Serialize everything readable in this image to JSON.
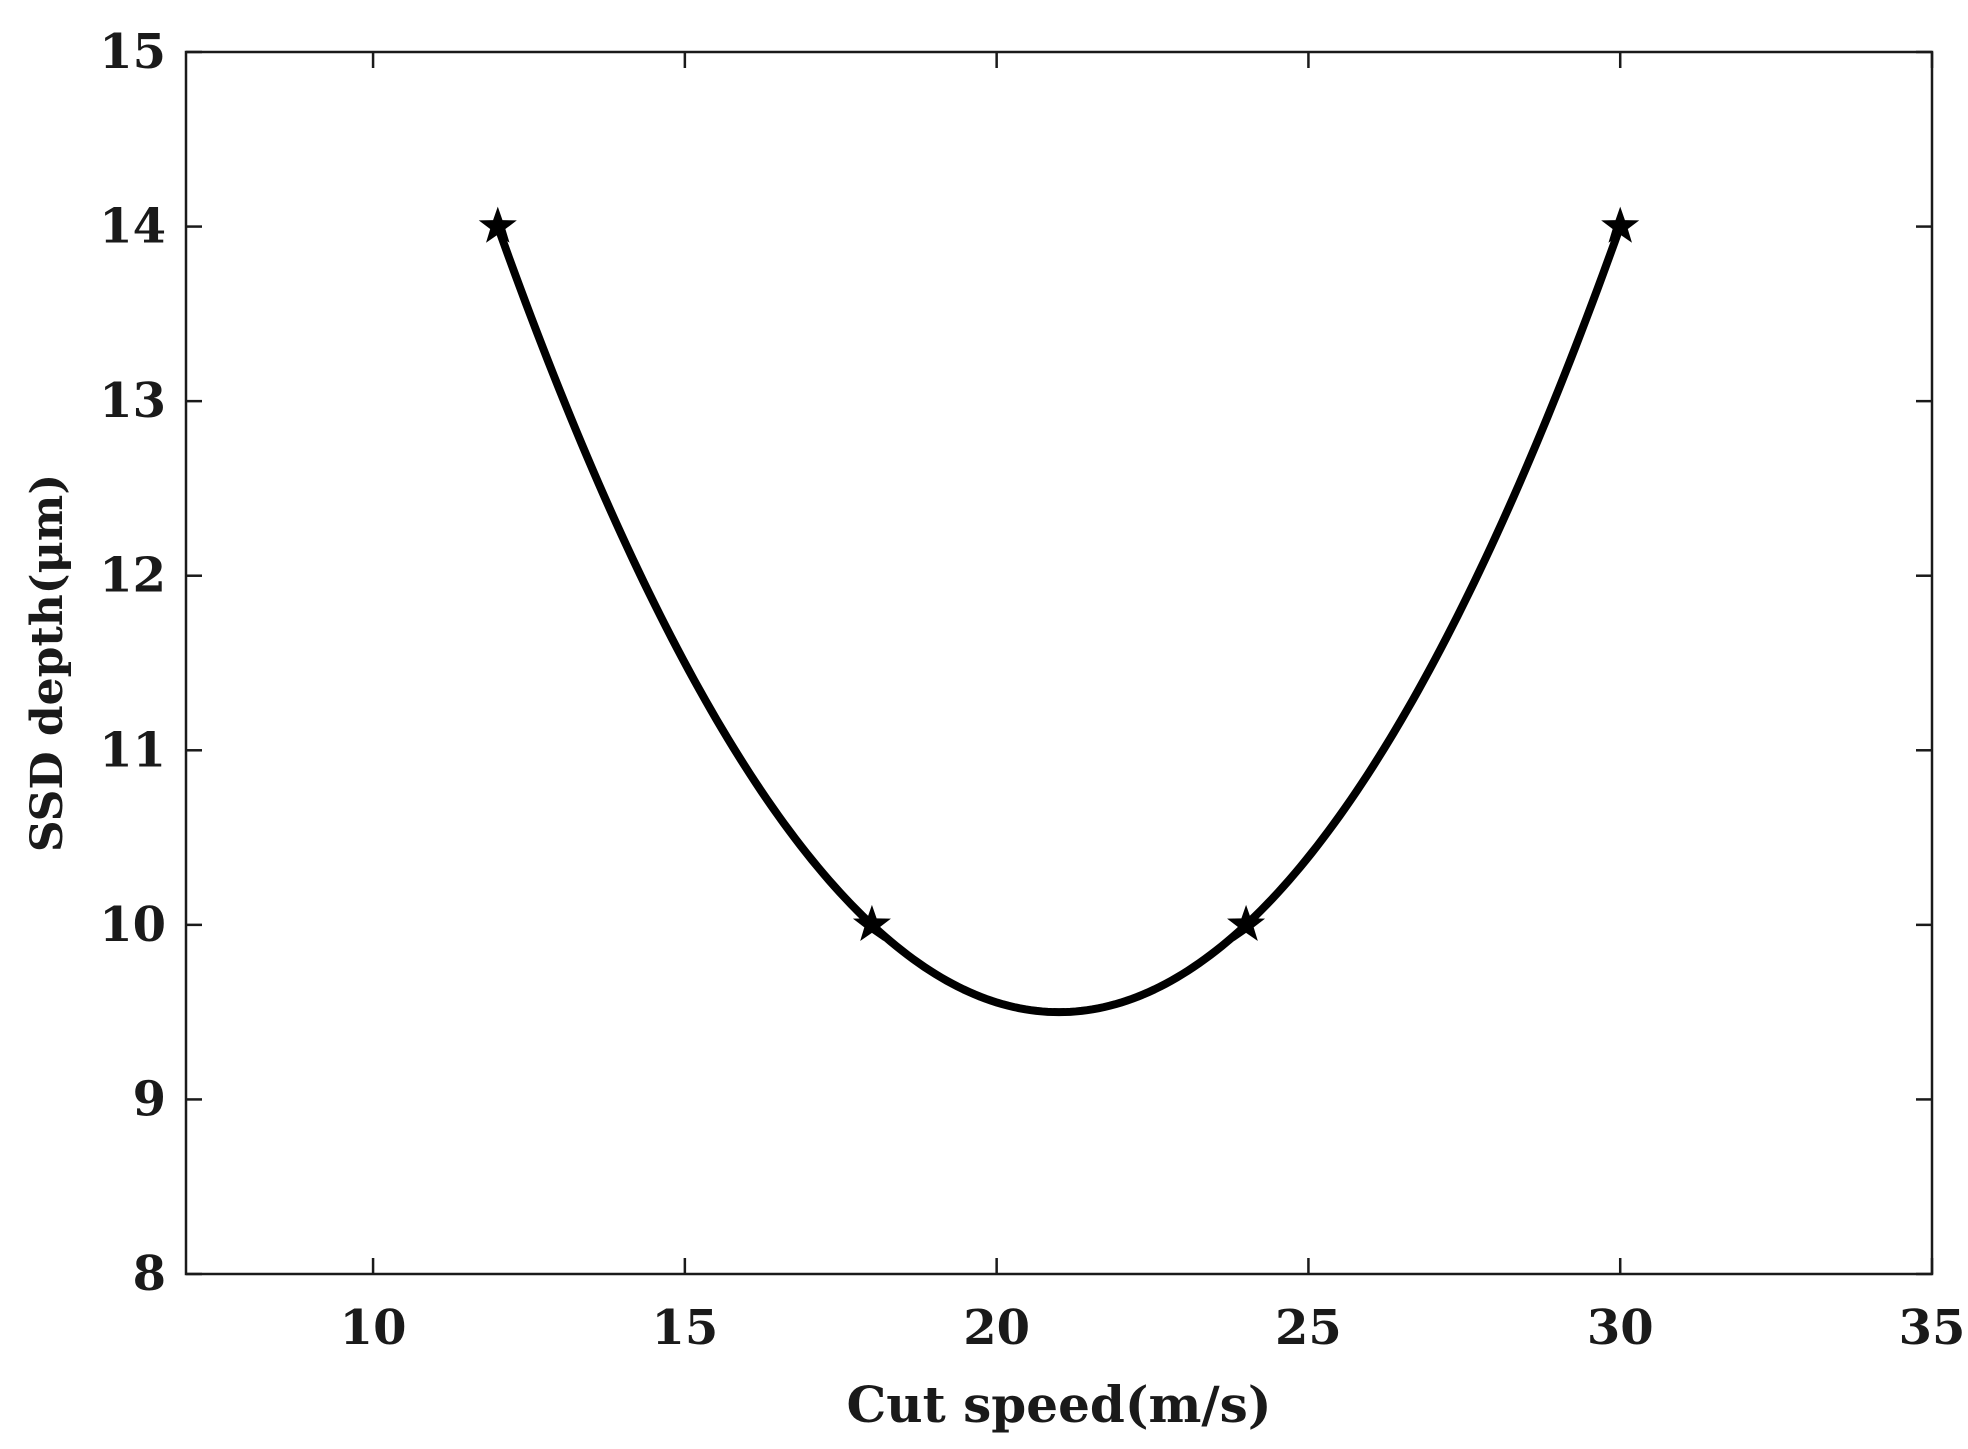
{
  "chart_data": {
    "type": "line",
    "title": "",
    "xlabel": "Cut speed(m/s)",
    "ylabel": "SSD depth(μm)",
    "xlim": [
      7,
      35
    ],
    "ylim": [
      8,
      15
    ],
    "x_ticks": [
      10,
      15,
      20,
      25,
      30,
      35
    ],
    "y_ticks": [
      8,
      9,
      10,
      11,
      12,
      13,
      14,
      15
    ],
    "grid": false,
    "legend": "none",
    "series": [
      {
        "marker": "star",
        "color": "#000000",
        "x": [
          12,
          18,
          24,
          30
        ],
        "y": [
          14,
          10,
          10,
          14
        ]
      }
    ],
    "fitted_curve": {
      "type": "quadratic",
      "color": "#000000",
      "x_range": [
        12,
        30
      ],
      "vertex": [
        21,
        9.5
      ]
    }
  }
}
